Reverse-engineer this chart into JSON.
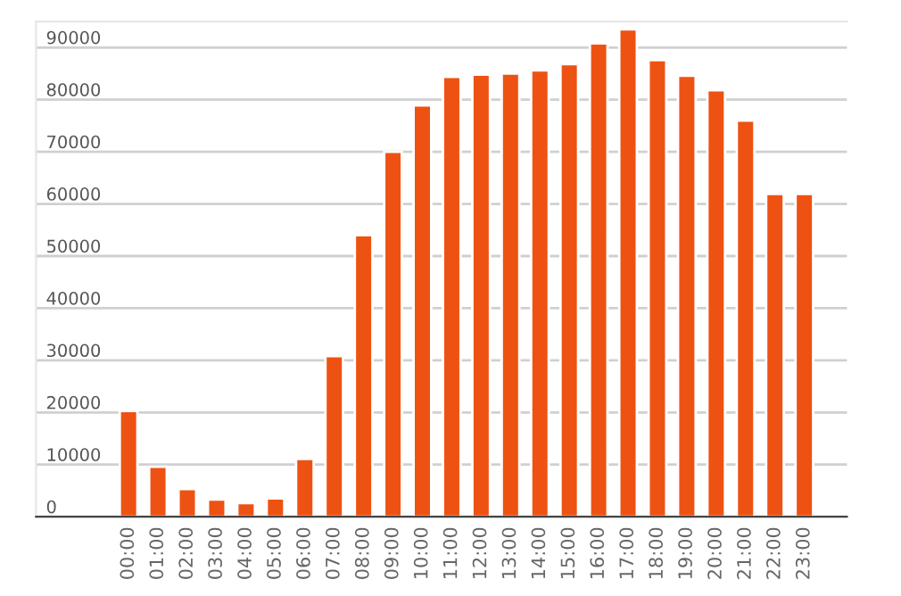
{
  "chart_data": {
    "type": "bar",
    "categories": [
      "00:00",
      "01:00",
      "02:00",
      "03:00",
      "04:00",
      "05:00",
      "06:00",
      "07:00",
      "08:00",
      "09:00",
      "10:00",
      "11:00",
      "12:00",
      "13:00",
      "14:00",
      "15:00",
      "16:00",
      "17:00",
      "18:00",
      "19:00",
      "20:00",
      "21:00",
      "22:00",
      "23:00"
    ],
    "values": [
      20300,
      9600,
      5300,
      3300,
      2600,
      3500,
      11100,
      30800,
      54000,
      70000,
      78900,
      84400,
      84800,
      85000,
      85600,
      86800,
      90800,
      93500,
      87600,
      84600,
      81800,
      76000,
      61900,
      61900
    ],
    "color": "#ee5212",
    "ylim": [
      0,
      95000
    ],
    "yticks": [
      0,
      10000,
      20000,
      30000,
      40000,
      50000,
      60000,
      70000,
      80000,
      90000
    ],
    "grid": "y",
    "legend": false
  }
}
